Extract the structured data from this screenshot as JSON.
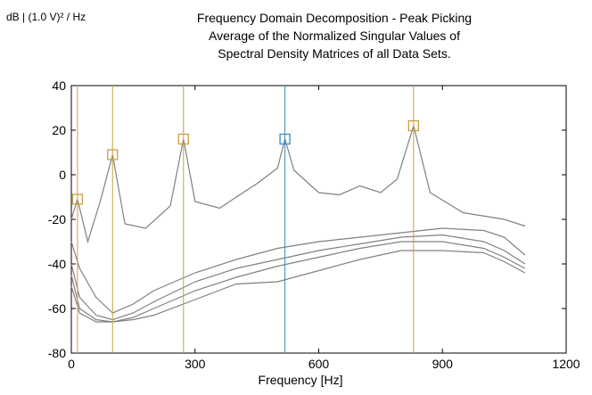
{
  "chart_data": {
    "type": "line",
    "title": [
      "Frequency Domain Decomposition - Peak Picking",
      "Average of the Normalized Singular Values of",
      "Spectral Density Matrices of all Data Sets."
    ],
    "ylabel": "dB | (1.0 V)² / Hz",
    "xlabel": "Frequency [Hz]",
    "xlim": [
      0,
      1200
    ],
    "ylim": [
      -80,
      40
    ],
    "xticks": [
      0,
      300,
      600,
      900,
      1200
    ],
    "yticks": [
      -80,
      -60,
      -40,
      -20,
      0,
      20,
      40
    ],
    "grid": false,
    "line_color": "#808080",
    "peaks": [
      {
        "freq": 15,
        "db": -11,
        "color": "#c8a040"
      },
      {
        "freq": 100,
        "db": 9,
        "color": "#c8a040"
      },
      {
        "freq": 272,
        "db": 16,
        "color": "#c8a040"
      },
      {
        "freq": 518,
        "db": 16,
        "color": "#3c8ac0"
      },
      {
        "freq": 830,
        "db": 22,
        "color": "#c8a040"
      }
    ],
    "series": [
      {
        "values": [
          [
            0,
            -20
          ],
          [
            15,
            -11
          ],
          [
            40,
            -30
          ],
          [
            70,
            -12
          ],
          [
            100,
            9
          ],
          [
            130,
            -22
          ],
          [
            180,
            -24
          ],
          [
            240,
            -14
          ],
          [
            272,
            16
          ],
          [
            300,
            -12
          ],
          [
            360,
            -15
          ],
          [
            400,
            -10
          ],
          [
            450,
            -4
          ],
          [
            500,
            3
          ],
          [
            518,
            16
          ],
          [
            540,
            2
          ],
          [
            600,
            -8
          ],
          [
            650,
            -9
          ],
          [
            700,
            -5
          ],
          [
            750,
            -8
          ],
          [
            790,
            -2
          ],
          [
            830,
            22
          ],
          [
            870,
            -8
          ],
          [
            950,
            -17
          ],
          [
            1050,
            -20
          ],
          [
            1100,
            -23
          ]
        ]
      },
      {
        "values": [
          [
            0,
            -30
          ],
          [
            20,
            -42
          ],
          [
            60,
            -55
          ],
          [
            100,
            -62
          ],
          [
            150,
            -58
          ],
          [
            200,
            -52
          ],
          [
            300,
            -44
          ],
          [
            400,
            -38
          ],
          [
            500,
            -33
          ],
          [
            600,
            -30
          ],
          [
            700,
            -28
          ],
          [
            800,
            -26
          ],
          [
            900,
            -24
          ],
          [
            1000,
            -25
          ],
          [
            1050,
            -28
          ],
          [
            1100,
            -36
          ]
        ]
      },
      {
        "values": [
          [
            0,
            -40
          ],
          [
            20,
            -55
          ],
          [
            60,
            -63
          ],
          [
            100,
            -65
          ],
          [
            150,
            -62
          ],
          [
            200,
            -57
          ],
          [
            300,
            -48
          ],
          [
            400,
            -42
          ],
          [
            500,
            -38
          ],
          [
            600,
            -34
          ],
          [
            700,
            -31
          ],
          [
            800,
            -28
          ],
          [
            900,
            -27
          ],
          [
            1000,
            -30
          ],
          [
            1050,
            -34
          ],
          [
            1100,
            -40
          ]
        ]
      },
      {
        "values": [
          [
            0,
            -45
          ],
          [
            20,
            -60
          ],
          [
            60,
            -65
          ],
          [
            100,
            -66
          ],
          [
            150,
            -64
          ],
          [
            200,
            -60
          ],
          [
            300,
            -52
          ],
          [
            400,
            -46
          ],
          [
            500,
            -41
          ],
          [
            600,
            -37
          ],
          [
            700,
            -33
          ],
          [
            800,
            -30
          ],
          [
            900,
            -30
          ],
          [
            1000,
            -33
          ],
          [
            1050,
            -37
          ],
          [
            1100,
            -42
          ]
        ]
      },
      {
        "values": [
          [
            0,
            -50
          ],
          [
            20,
            -62
          ],
          [
            60,
            -66
          ],
          [
            100,
            -66
          ],
          [
            150,
            -65
          ],
          [
            200,
            -63
          ],
          [
            300,
            -56
          ],
          [
            400,
            -49
          ],
          [
            500,
            -48
          ],
          [
            600,
            -43
          ],
          [
            700,
            -38
          ],
          [
            800,
            -34
          ],
          [
            900,
            -34
          ],
          [
            1000,
            -35
          ],
          [
            1050,
            -39
          ],
          [
            1100,
            -44
          ]
        ]
      }
    ]
  }
}
